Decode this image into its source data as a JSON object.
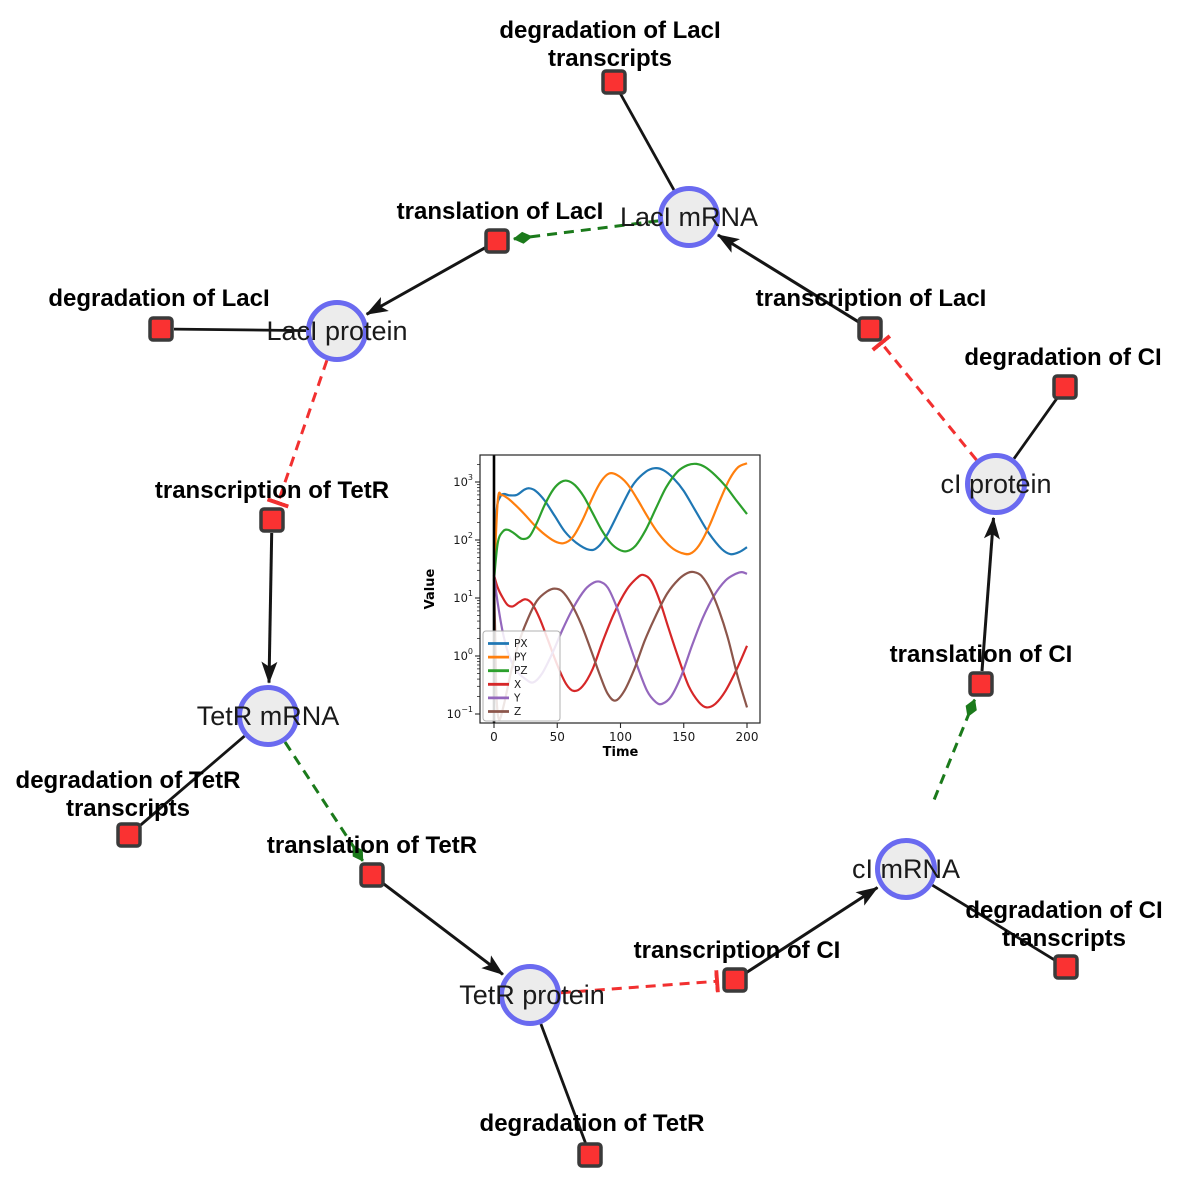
{
  "diagram": {
    "style": {
      "species_fill": "#ececec",
      "species_border": "#6a6af0",
      "reaction_fill": "#fa3232",
      "reaction_border": "#3a3a3a",
      "production_edge": "#151515",
      "modifier_edge": "#1b7a1b",
      "inhibition_edge": "#f23030"
    },
    "species": [
      {
        "id": "lacI-mRNA",
        "label": "LacI mRNA"
      },
      {
        "id": "lacI-protein",
        "label": "LacI protein"
      },
      {
        "id": "cI-protein",
        "label": "cI protein"
      },
      {
        "id": "tetR-mRNA",
        "label": "TetR mRNA"
      },
      {
        "id": "cI-mRNA",
        "label": "cI mRNA"
      },
      {
        "id": "tetR-protein",
        "label": "TetR protein"
      }
    ],
    "reactions": [
      {
        "id": "deg-lacI-transcripts",
        "label_lines": [
          "degradation of LacI",
          "transcripts"
        ]
      },
      {
        "id": "translation-lacI",
        "label_lines": [
          "translation of LacI"
        ]
      },
      {
        "id": "deg-lacI",
        "label_lines": [
          "degradation of LacI"
        ]
      },
      {
        "id": "transcription-lacI",
        "label_lines": [
          "transcription of LacI"
        ]
      },
      {
        "id": "deg-cI",
        "label_lines": [
          "degradation of CI"
        ]
      },
      {
        "id": "transcription-tetR",
        "label_lines": [
          "transcription of TetR"
        ]
      },
      {
        "id": "translation-cI",
        "label_lines": [
          "translation of CI"
        ]
      },
      {
        "id": "deg-tetR-transcripts",
        "label_lines": [
          "degradation of TetR",
          "transcripts"
        ]
      },
      {
        "id": "translation-tetR",
        "label_lines": [
          "translation of TetR"
        ]
      },
      {
        "id": "deg-cI-transcripts",
        "label_lines": [
          "degradation of CI",
          "transcripts"
        ]
      },
      {
        "id": "transcription-cI",
        "label_lines": [
          "transcription of CI"
        ]
      },
      {
        "id": "deg-tetR",
        "label_lines": [
          "degradation of TetR"
        ]
      }
    ],
    "edges": [
      {
        "from": "lacI-mRNA",
        "to": "deg-lacI-transcripts",
        "type": "consumption"
      },
      {
        "from": "lacI-protein",
        "to": "deg-lacI",
        "type": "consumption"
      },
      {
        "from": "cI-protein",
        "to": "deg-cI",
        "type": "consumption"
      },
      {
        "from": "tetR-mRNA",
        "to": "deg-tetR-transcripts",
        "type": "consumption"
      },
      {
        "from": "cI-mRNA",
        "to": "deg-cI-transcripts",
        "type": "consumption"
      },
      {
        "from": "tetR-protein",
        "to": "deg-tetR",
        "type": "consumption"
      },
      {
        "from": "translation-lacI",
        "to": "lacI-protein",
        "type": "production"
      },
      {
        "from": "transcription-lacI",
        "to": "lacI-mRNA",
        "type": "production"
      },
      {
        "from": "transcription-tetR",
        "to": "tetR-mRNA",
        "type": "production"
      },
      {
        "from": "translation-tetR",
        "to": "tetR-protein",
        "type": "production"
      },
      {
        "from": "transcription-cI",
        "to": "cI-mRNA",
        "type": "production"
      },
      {
        "from": "translation-cI",
        "to": "cI-protein",
        "type": "production"
      },
      {
        "from": "lacI-mRNA",
        "to": "translation-lacI",
        "type": "modifier"
      },
      {
        "from": "tetR-mRNA",
        "to": "translation-tetR",
        "type": "modifier"
      },
      {
        "from": "cI-mRNA",
        "to": "translation-cI",
        "type": "modifier"
      },
      {
        "from": "lacI-protein",
        "to": "transcription-tetR",
        "type": "inhibition"
      },
      {
        "from": "tetR-protein",
        "to": "transcription-cI",
        "type": "inhibition"
      },
      {
        "from": "cI-protein",
        "to": "transcription-lacI",
        "type": "inhibition"
      }
    ]
  },
  "chart_data": {
    "type": "line",
    "title": "",
    "xlabel": "Time",
    "ylabel": "Value",
    "y_scale": "log",
    "x_ticks": [
      0,
      50,
      100,
      150,
      200
    ],
    "y_tick_exponents": [
      -1,
      0,
      1,
      2,
      3
    ],
    "xlim": [
      -11,
      210
    ],
    "legend_position": "lower left",
    "grid": false,
    "annotations": [
      {
        "type": "vline",
        "x": 0,
        "color": "#000000"
      }
    ],
    "series": [
      {
        "name": "PX",
        "color": "#1f77b4",
        "points": [
          [
            0,
            20
          ],
          [
            2,
            300
          ],
          [
            5,
            560
          ],
          [
            8,
            620
          ],
          [
            12,
            590
          ],
          [
            18,
            600
          ],
          [
            24,
            740
          ],
          [
            28,
            780
          ],
          [
            33,
            700
          ],
          [
            40,
            480
          ],
          [
            48,
            260
          ],
          [
            56,
            140
          ],
          [
            65,
            90
          ],
          [
            75,
            68
          ],
          [
            82,
            75
          ],
          [
            90,
            130
          ],
          [
            100,
            350
          ],
          [
            110,
            900
          ],
          [
            120,
            1500
          ],
          [
            127,
            1730
          ],
          [
            134,
            1600
          ],
          [
            142,
            1150
          ],
          [
            150,
            700
          ],
          [
            160,
            300
          ],
          [
            170,
            130
          ],
          [
            180,
            70
          ],
          [
            187,
            57
          ],
          [
            194,
            62
          ],
          [
            200,
            75
          ]
        ]
      },
      {
        "name": "PY",
        "color": "#ff7f0e",
        "points": [
          [
            0,
            20
          ],
          [
            3,
            480
          ],
          [
            6,
            590
          ],
          [
            10,
            540
          ],
          [
            16,
            420
          ],
          [
            24,
            280
          ],
          [
            32,
            180
          ],
          [
            40,
            125
          ],
          [
            48,
            95
          ],
          [
            55,
            88
          ],
          [
            62,
            110
          ],
          [
            70,
            220
          ],
          [
            78,
            550
          ],
          [
            85,
            1050
          ],
          [
            91,
            1400
          ],
          [
            97,
            1330
          ],
          [
            105,
            950
          ],
          [
            113,
            520
          ],
          [
            121,
            260
          ],
          [
            130,
            130
          ],
          [
            140,
            75
          ],
          [
            148,
            60
          ],
          [
            155,
            58
          ],
          [
            162,
            80
          ],
          [
            170,
            170
          ],
          [
            178,
            450
          ],
          [
            186,
            1100
          ],
          [
            193,
            1800
          ],
          [
            200,
            2100
          ]
        ]
      },
      {
        "name": "PZ",
        "color": "#2ca02c",
        "points": [
          [
            0,
            20
          ],
          [
            3,
            90
          ],
          [
            7,
            140
          ],
          [
            11,
            150
          ],
          [
            16,
            130
          ],
          [
            22,
            105
          ],
          [
            28,
            115
          ],
          [
            34,
            200
          ],
          [
            40,
            400
          ],
          [
            47,
            750
          ],
          [
            53,
            1000
          ],
          [
            58,
            1050
          ],
          [
            64,
            880
          ],
          [
            71,
            560
          ],
          [
            78,
            290
          ],
          [
            85,
            150
          ],
          [
            92,
            90
          ],
          [
            99,
            68
          ],
          [
            105,
            64
          ],
          [
            112,
            80
          ],
          [
            120,
            150
          ],
          [
            128,
            350
          ],
          [
            136,
            800
          ],
          [
            145,
            1500
          ],
          [
            153,
            1950
          ],
          [
            160,
            2050
          ],
          [
            167,
            1800
          ],
          [
            175,
            1300
          ],
          [
            183,
            850
          ],
          [
            191,
            500
          ],
          [
            200,
            280
          ]
        ]
      },
      {
        "name": "X",
        "color": "#d62728",
        "points": [
          [
            0,
            25
          ],
          [
            3,
            15
          ],
          [
            7,
            10
          ],
          [
            11,
            7.5
          ],
          [
            15,
            7.2
          ],
          [
            20,
            8.5
          ],
          [
            25,
            9.5
          ],
          [
            30,
            8
          ],
          [
            36,
            4.5
          ],
          [
            43,
            1.8
          ],
          [
            50,
            0.7
          ],
          [
            57,
            0.33
          ],
          [
            63,
            0.25
          ],
          [
            70,
            0.3
          ],
          [
            78,
            0.6
          ],
          [
            86,
            1.8
          ],
          [
            95,
            5.5
          ],
          [
            105,
            14
          ],
          [
            113,
            22
          ],
          [
            118,
            25
          ],
          [
            124,
            20
          ],
          [
            131,
            9
          ],
          [
            138,
            3
          ],
          [
            146,
            0.9
          ],
          [
            154,
            0.3
          ],
          [
            162,
            0.16
          ],
          [
            168,
            0.13
          ],
          [
            175,
            0.15
          ],
          [
            183,
            0.25
          ],
          [
            192,
            0.6
          ],
          [
            200,
            1.5
          ]
        ]
      },
      {
        "name": "Y",
        "color": "#9467bd",
        "points": [
          [
            0,
            25
          ],
          [
            3,
            8
          ],
          [
            7,
            2.5
          ],
          [
            12,
            1
          ],
          [
            18,
            0.55
          ],
          [
            25,
            0.4
          ],
          [
            31,
            0.35
          ],
          [
            38,
            0.5
          ],
          [
            46,
            1.1
          ],
          [
            54,
            2.8
          ],
          [
            63,
            7
          ],
          [
            72,
            14
          ],
          [
            79,
            18.5
          ],
          [
            84,
            19
          ],
          [
            90,
            15
          ],
          [
            97,
            7
          ],
          [
            105,
            2.2
          ],
          [
            113,
            0.7
          ],
          [
            121,
            0.25
          ],
          [
            128,
            0.16
          ],
          [
            133,
            0.15
          ],
          [
            140,
            0.2
          ],
          [
            148,
            0.45
          ],
          [
            156,
            1.4
          ],
          [
            165,
            4.5
          ],
          [
            174,
            11
          ],
          [
            183,
            20
          ],
          [
            191,
            26
          ],
          [
            196,
            28
          ],
          [
            200,
            26
          ]
        ]
      },
      {
        "name": "Z",
        "color": "#8c564b",
        "points": [
          [
            0,
            25
          ],
          [
            1,
            2
          ],
          [
            2,
            0.2
          ],
          [
            4,
            0.08
          ],
          [
            8,
            0.15
          ],
          [
            14,
            0.6
          ],
          [
            20,
            1.8
          ],
          [
            27,
            4.5
          ],
          [
            34,
            9
          ],
          [
            42,
            13
          ],
          [
            48,
            14.5
          ],
          [
            54,
            13
          ],
          [
            61,
            8
          ],
          [
            69,
            3.5
          ],
          [
            77,
            1.2
          ],
          [
            84,
            0.45
          ],
          [
            90,
            0.22
          ],
          [
            96,
            0.17
          ],
          [
            103,
            0.25
          ],
          [
            111,
            0.6
          ],
          [
            119,
            1.8
          ],
          [
            128,
            5
          ],
          [
            137,
            12
          ],
          [
            146,
            21
          ],
          [
            153,
            27
          ],
          [
            158,
            28
          ],
          [
            164,
            24
          ],
          [
            171,
            14
          ],
          [
            178,
            6
          ],
          [
            185,
            2
          ],
          [
            192,
            0.5
          ],
          [
            200,
            0.13
          ]
        ]
      }
    ]
  }
}
